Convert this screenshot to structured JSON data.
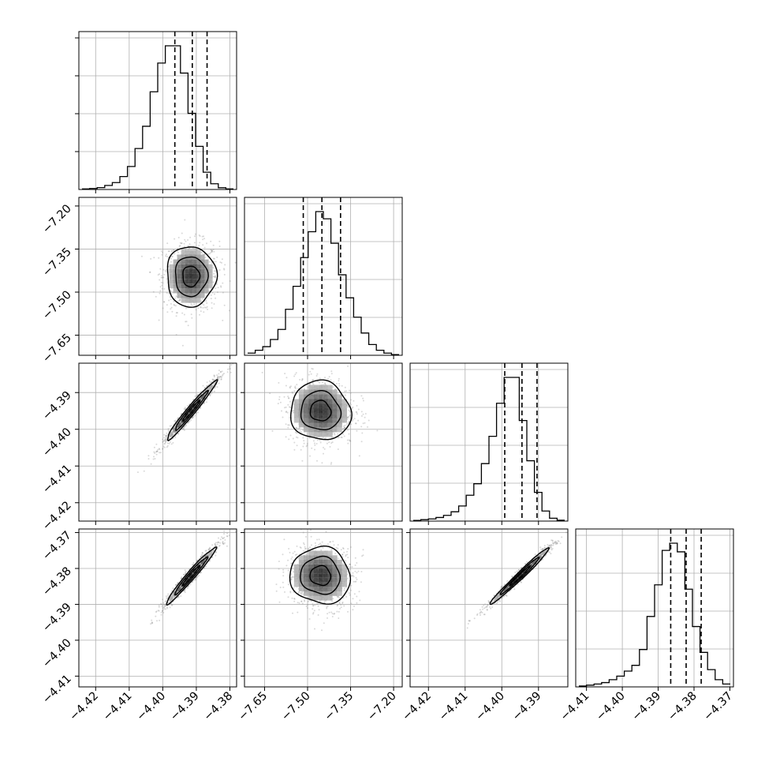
{
  "chart_data": {
    "type": "corner",
    "n_params": 4,
    "colors": {
      "line": "#000000",
      "grid": "#b0b0b0",
      "scatter": "#888888"
    },
    "grid": true,
    "params": [
      {
        "range": [
          -4.425,
          -4.378
        ],
        "ticks": [
          -4.42,
          -4.41,
          -4.4,
          -4.39,
          -4.38
        ],
        "tick_labels": [
          "−4.42",
          "−4.41",
          "−4.40",
          "−4.39",
          "−4.38"
        ],
        "quantiles": [
          -4.3964,
          -4.3912,
          -4.3868
        ]
      },
      {
        "range": [
          -7.72,
          -7.17
        ],
        "ticks": [
          -7.65,
          -7.5,
          -7.35,
          -7.2
        ],
        "tick_labels": [
          "−7.65",
          "−7.50",
          "−7.35",
          "−7.20"
        ],
        "quantiles": [
          -7.515,
          -7.45,
          -7.385
        ]
      },
      {
        "range": [
          -4.425,
          -4.382
        ],
        "ticks": [
          -4.42,
          -4.41,
          -4.4,
          -4.39
        ],
        "tick_labels": [
          "−4.42",
          "−4.41",
          "−4.40",
          "−4.39"
        ],
        "quantiles": [
          -4.3992,
          -4.3945,
          -4.3904
        ]
      },
      {
        "range": [
          -4.413,
          -4.369
        ],
        "ticks": [
          -4.41,
          -4.4,
          -4.39,
          -4.38,
          -4.37
        ],
        "tick_labels": [
          "−4.41",
          "−4.40",
          "−4.39",
          "−4.38",
          "−4.37"
        ],
        "quantiles": [
          -4.3865,
          -4.3822,
          -4.378
        ]
      }
    ],
    "histograms": [
      [
        0.004,
        0.007,
        0.013,
        0.028,
        0.048,
        0.09,
        0.16,
        0.285,
        0.44,
        0.68,
        0.88,
        1.0,
        1.0,
        0.81,
        0.53,
        0.3,
        0.12,
        0.04,
        0.012,
        0.004
      ],
      [
        0.015,
        0.035,
        0.06,
        0.11,
        0.18,
        0.32,
        0.48,
        0.68,
        0.86,
        1.0,
        0.95,
        0.78,
        0.56,
        0.4,
        0.265,
        0.155,
        0.075,
        0.035,
        0.015,
        0.005
      ],
      [
        0.005,
        0.01,
        0.015,
        0.025,
        0.04,
        0.065,
        0.105,
        0.18,
        0.26,
        0.4,
        0.59,
        0.82,
        1.0,
        1.0,
        0.7,
        0.42,
        0.2,
        0.07,
        0.02,
        0.006
      ],
      [
        0.006,
        0.012,
        0.02,
        0.03,
        0.05,
        0.075,
        0.11,
        0.15,
        0.26,
        0.49,
        0.71,
        0.95,
        1.0,
        0.94,
        0.68,
        0.42,
        0.24,
        0.12,
        0.05,
        0.02
      ]
    ],
    "pairs": [
      {
        "row": 1,
        "col": 0,
        "center": [
          -4.3916,
          -7.445
        ],
        "sd": [
          0.0042,
          0.06
        ],
        "rho": 0.0
      },
      {
        "row": 2,
        "col": 0,
        "center": [
          -4.3916,
          -4.395
        ],
        "sd": [
          0.0042,
          0.0046
        ],
        "rho": 0.975
      },
      {
        "row": 2,
        "col": 1,
        "center": [
          -7.455,
          -4.395
        ],
        "sd": [
          0.06,
          0.0046
        ],
        "rho": -0.05
      },
      {
        "row": 3,
        "col": 0,
        "center": [
          -4.3916,
          -4.382
        ],
        "sd": [
          0.0042,
          0.0045
        ],
        "rho": 0.975
      },
      {
        "row": 3,
        "col": 1,
        "center": [
          -7.455,
          -4.382
        ],
        "sd": [
          0.06,
          0.0045
        ],
        "rho": -0.05
      },
      {
        "row": 3,
        "col": 2,
        "center": [
          -4.395,
          -4.382
        ],
        "sd": [
          0.0046,
          0.0045
        ],
        "rho": 0.985
      }
    ]
  }
}
